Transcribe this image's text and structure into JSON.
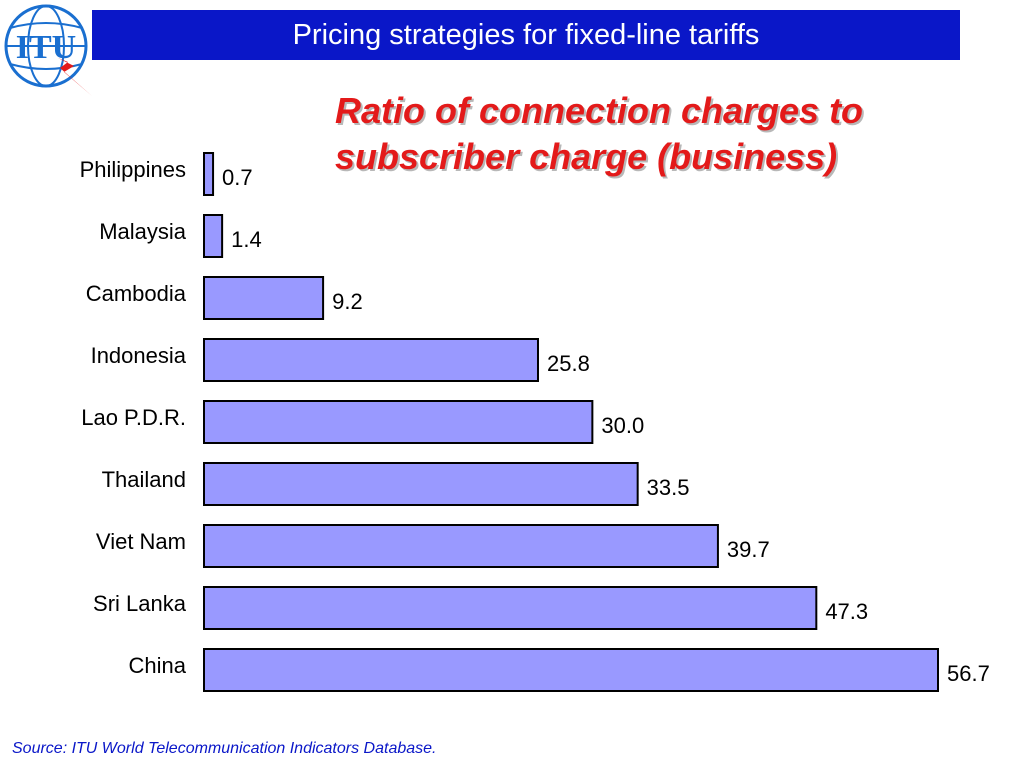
{
  "header": {
    "title": "Pricing strategies for fixed-line tariffs",
    "logo_text": "ITU",
    "bar_color": "#0a17c8"
  },
  "chart_data": {
    "type": "bar",
    "orientation": "horizontal",
    "title": "Ratio of connection charges to subscriber charge (business)",
    "categories": [
      "Philippines",
      "Malaysia",
      "Cambodia",
      "Indonesia",
      "Lao P.D.R.",
      "Thailand",
      "Viet Nam",
      "Sri Lanka",
      "China"
    ],
    "values": [
      0.7,
      1.4,
      9.2,
      25.8,
      30.0,
      33.5,
      39.7,
      47.3,
      56.7
    ],
    "value_labels": [
      "0.7",
      "1.4",
      "9.2",
      "25.8",
      "30.0",
      "33.5",
      "39.7",
      "47.3",
      "56.7"
    ],
    "xlim": [
      0,
      56.7
    ],
    "grid": false,
    "bar_color": "#9999ff",
    "title_color": "#e31a1a"
  },
  "footer": {
    "source": "Source: ITU World Telecommunication Indicators Database."
  }
}
